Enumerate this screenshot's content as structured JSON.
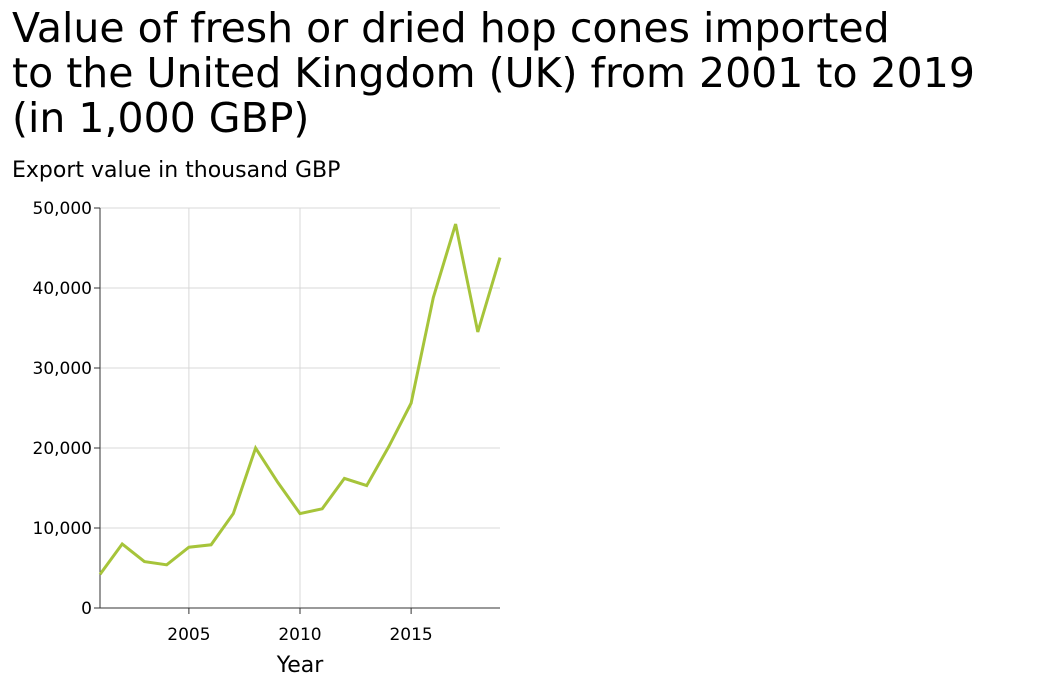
{
  "chart_data": {
    "type": "line",
    "title": "Value of fresh or dried hop cones imported\nto the United Kingdom (UK) from 2001 to 2019\n(in 1,000 GBP)",
    "xlabel": "Year",
    "ylabel": "Export value in thousand GBP",
    "xlim": [
      2001,
      2019
    ],
    "ylim": [
      0,
      50000
    ],
    "x_ticks": [
      2005,
      2010,
      2015
    ],
    "x_tick_labels": [
      "2005",
      "2010",
      "2015"
    ],
    "y_ticks": [
      0,
      10000,
      20000,
      30000,
      40000,
      50000
    ],
    "y_tick_labels": [
      "0",
      "10,000",
      "20,000",
      "30,000",
      "40,000",
      "50,000"
    ],
    "grid": true,
    "line_color": "#a6c43a",
    "x": [
      2001,
      2002,
      2003,
      2004,
      2005,
      2006,
      2007,
      2008,
      2009,
      2010,
      2011,
      2012,
      2013,
      2014,
      2015,
      2016,
      2017,
      2018,
      2019
    ],
    "series": [
      {
        "values": [
          4200,
          8000,
          5800,
          5400,
          7600,
          7900,
          11800,
          20000,
          15700,
          11800,
          12400,
          16200,
          15300,
          20200,
          25600,
          38800,
          48000,
          34500,
          43800
        ]
      }
    ]
  }
}
